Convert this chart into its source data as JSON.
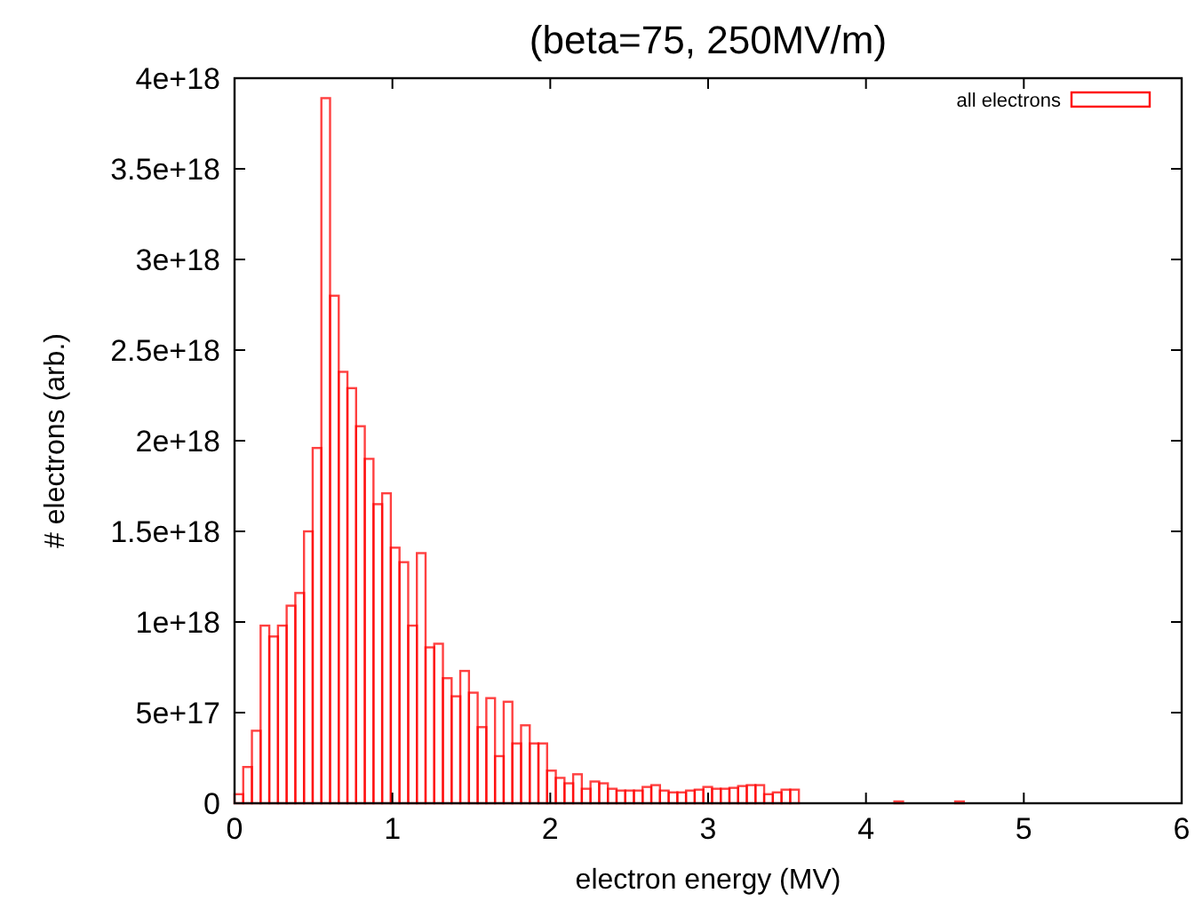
{
  "chart_data": {
    "type": "histogram",
    "title": "(beta=75, 250MV/m)",
    "xlabel": "electron energy (MV)",
    "ylabel": "# electrons (arb.)",
    "bins": [
      0,
      0.055,
      0.11,
      0.165,
      0.22,
      0.275,
      0.33,
      0.385,
      0.44,
      0.495,
      0.55,
      0.605,
      0.66,
      0.715,
      0.77,
      0.825,
      0.88,
      0.935,
      0.99,
      1.045,
      1.1,
      1.155,
      1.21,
      1.265,
      1.32,
      1.375,
      1.43,
      1.485,
      1.54,
      1.595,
      1.65,
      1.705,
      1.76,
      1.815,
      1.87,
      1.925,
      1.98,
      2.035,
      2.09,
      2.145,
      2.2,
      2.255,
      2.31,
      2.365,
      2.42,
      2.475,
      2.53,
      2.585,
      2.64,
      2.695,
      2.75,
      2.805,
      2.86,
      2.915,
      2.97,
      3.025,
      3.08,
      3.135,
      3.19,
      3.245,
      3.3,
      3.355,
      3.41,
      3.465,
      3.52,
      3.575,
      3.63,
      3.685,
      3.74,
      3.795,
      3.85,
      3.905,
      3.96,
      4.015,
      4.07,
      4.125,
      4.18,
      4.235,
      4.29,
      4.345,
      4.4,
      4.455,
      4.51,
      4.565,
      4.62,
      4.675,
      4.73,
      4.785,
      4.84,
      4.895,
      4.95,
      5.005,
      5.06,
      5.115,
      5.17,
      5.225,
      5.28,
      5.335,
      5.39,
      5.445,
      5.5
    ],
    "series": [
      {
        "name": "all electrons",
        "color": "#ff0000",
        "values": [
          5e+16,
          2e+17,
          4e+17,
          9.8e+17,
          9.2e+17,
          9.8e+17,
          1.09e+18,
          1.16e+18,
          1.5e+18,
          1.96e+18,
          3.89e+18,
          2.8e+18,
          2.38e+18,
          2.29e+18,
          2.08e+18,
          1.9e+18,
          1.65e+18,
          1.71e+18,
          1.41e+18,
          1.33e+18,
          9.8e+17,
          1.38e+18,
          8.6e+17,
          8.8e+17,
          6.9e+17,
          5.9e+17,
          7.3e+17,
          6.1e+17,
          4.2e+17,
          5.8e+17,
          2.6e+17,
          5.6e+17,
          3.3e+17,
          4.3e+17,
          3.3e+17,
          3.3e+17,
          1.8e+17,
          1.4e+17,
          1.1e+17,
          1.6e+17,
          8e+16,
          1.2e+17,
          1.1e+17,
          8e+16,
          7e+16,
          7e+16,
          7e+16,
          9e+16,
          1e+17,
          7e+16,
          6e+16,
          6e+16,
          7e+16,
          7.5e+16,
          9e+16,
          8e+16,
          8e+16,
          8.5e+16,
          9.5e+16,
          1e+17,
          1e+17,
          5e+16,
          6e+16,
          7.5e+16,
          7.5e+16,
          0,
          0,
          0,
          0,
          0,
          0,
          0,
          0,
          0,
          0,
          0,
          1e+16,
          0,
          0,
          0,
          0,
          0,
          0,
          1e+16,
          0,
          0,
          0,
          0,
          0,
          0,
          0,
          0,
          0,
          0,
          0,
          0,
          0,
          0,
          0,
          0
        ]
      }
    ],
    "xlim": [
      0,
      6
    ],
    "xticks": [
      0,
      1,
      2,
      3,
      4,
      5,
      6
    ],
    "ylim": [
      0,
      4e+18
    ],
    "yticks": [
      {
        "value": 0,
        "label": "0"
      },
      {
        "value": 5e+17,
        "label": "5e+17"
      },
      {
        "value": 1e+18,
        "label": "1e+18"
      },
      {
        "value": 1.5e+18,
        "label": "1.5e+18"
      },
      {
        "value": 2e+18,
        "label": "2e+18"
      },
      {
        "value": 2.5e+18,
        "label": "2.5e+18"
      },
      {
        "value": 3e+18,
        "label": "3e+18"
      },
      {
        "value": 3.5e+18,
        "label": "3.5e+18"
      },
      {
        "value": 4e+18,
        "label": "4e+18"
      }
    ],
    "legend": "top right",
    "grid": false
  }
}
